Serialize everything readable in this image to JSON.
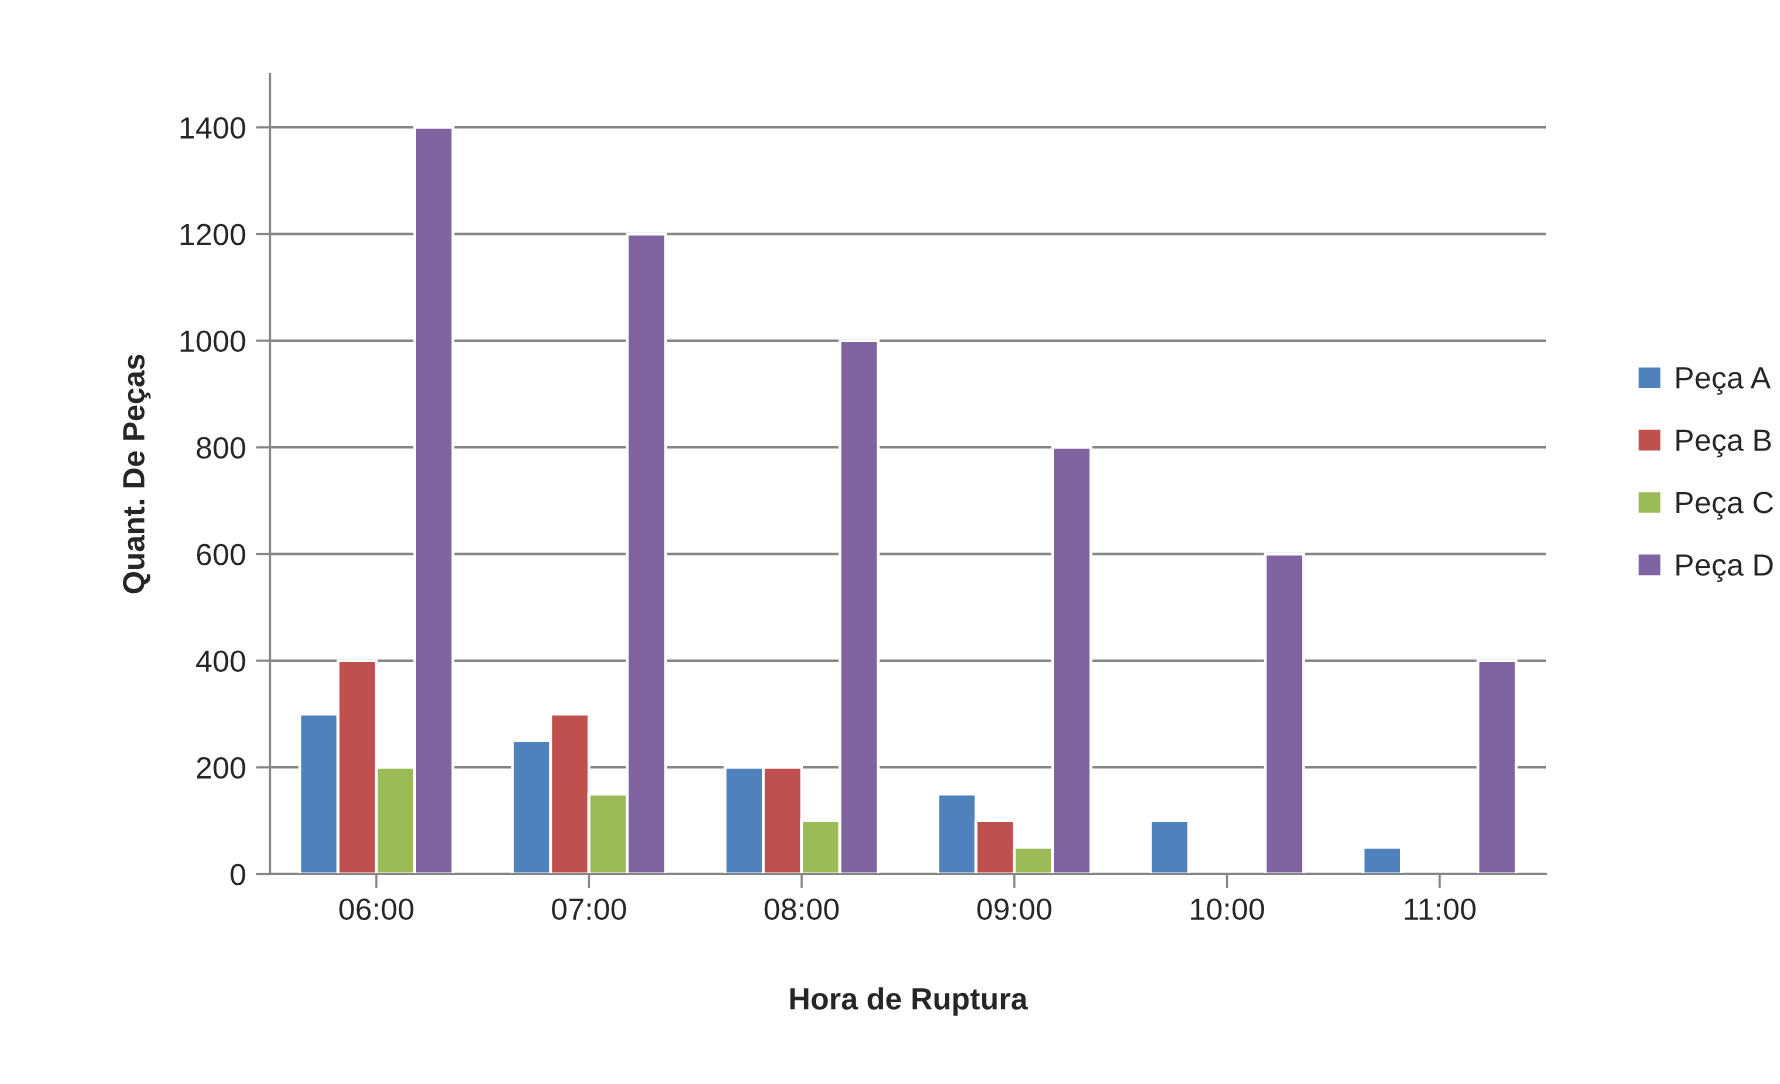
{
  "chart_data": {
    "type": "bar",
    "xlabel": "Hora de Ruptura",
    "ylabel": "Quant. De Peças",
    "categories": [
      "06:00",
      "07:00",
      "08:00",
      "09:00",
      "10:00",
      "11:00"
    ],
    "series": [
      {
        "name": "Peça A",
        "color": "#4f81bd",
        "values": [
          300,
          250,
          200,
          150,
          100,
          50
        ]
      },
      {
        "name": "Peça B",
        "color": "#c0504d",
        "values": [
          400,
          300,
          200,
          100,
          null,
          null
        ]
      },
      {
        "name": "Peça C",
        "color": "#9bbb59",
        "values": [
          200,
          150,
          100,
          50,
          null,
          null
        ]
      },
      {
        "name": "Peça D",
        "color": "#8064a2",
        "values": [
          1400,
          1200,
          1000,
          800,
          600,
          400
        ]
      }
    ],
    "ylim": [
      0,
      1500
    ],
    "yticks": [
      0,
      200,
      400,
      600,
      800,
      1000,
      1200,
      1400
    ],
    "grid": "y",
    "legend": "right"
  }
}
